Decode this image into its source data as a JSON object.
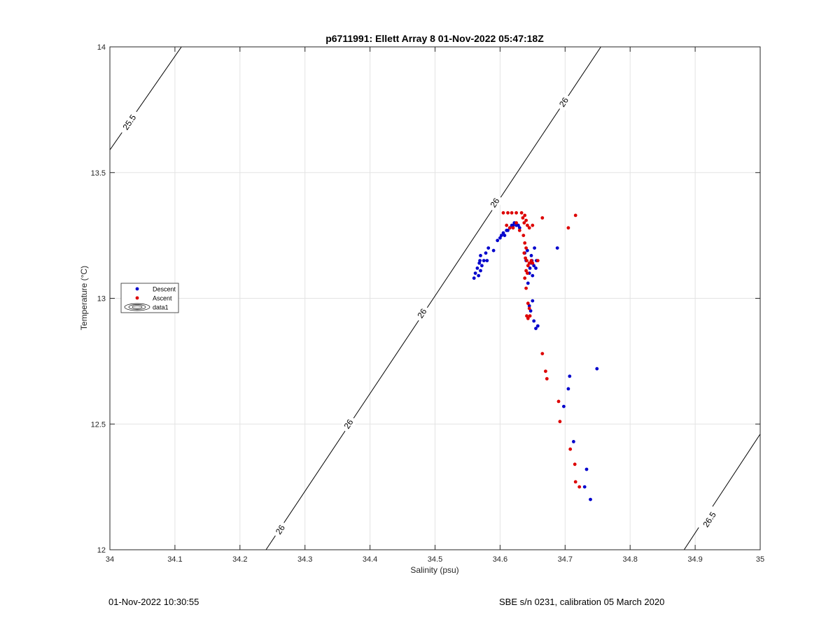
{
  "chart_data": {
    "type": "scatter",
    "title": "p6711991: Ellett Array 8 01-Nov-2022 05:47:18Z",
    "xlabel": "Salinity (psu)",
    "ylabel": "Temperature (°C)",
    "xlim": [
      34,
      35
    ],
    "ylim": [
      12,
      14
    ],
    "xticks": [
      34,
      34.1,
      34.2,
      34.3,
      34.4,
      34.5,
      34.6,
      34.7,
      34.8,
      34.9,
      35
    ],
    "xtick_labels": [
      "34",
      "34.1",
      "34.2",
      "34.3",
      "34.4",
      "34.5",
      "34.6",
      "34.7",
      "34.8",
      "34.9",
      "35"
    ],
    "yticks": [
      12,
      12.5,
      13,
      13.5,
      14
    ],
    "ytick_labels": [
      "12",
      "12.5",
      "13",
      "13.5",
      "14"
    ],
    "grid": true,
    "legend_position": "left",
    "series": [
      {
        "name": "Descent",
        "color": "#0000cc",
        "points": [
          [
            34.56,
            13.08
          ],
          [
            34.562,
            13.1
          ],
          [
            34.565,
            13.12
          ],
          [
            34.567,
            13.09
          ],
          [
            34.568,
            13.14
          ],
          [
            34.569,
            13.15
          ],
          [
            34.57,
            13.11
          ],
          [
            34.57,
            13.17
          ],
          [
            34.572,
            13.13
          ],
          [
            34.575,
            13.15
          ],
          [
            34.578,
            13.18
          ],
          [
            34.58,
            13.15
          ],
          [
            34.582,
            13.2
          ],
          [
            34.59,
            13.19
          ],
          [
            34.596,
            13.23
          ],
          [
            34.6,
            13.24
          ],
          [
            34.602,
            13.25
          ],
          [
            34.605,
            13.26
          ],
          [
            34.607,
            13.25
          ],
          [
            34.61,
            13.27
          ],
          [
            34.612,
            13.27
          ],
          [
            34.615,
            13.28
          ],
          [
            34.618,
            13.29
          ],
          [
            34.62,
            13.29
          ],
          [
            34.622,
            13.3
          ],
          [
            34.625,
            13.29
          ],
          [
            34.628,
            13.29
          ],
          [
            34.63,
            13.28
          ],
          [
            34.638,
            13.18
          ],
          [
            34.64,
            13.15
          ],
          [
            34.642,
            13.19
          ],
          [
            34.643,
            13.06
          ],
          [
            34.645,
            13.1
          ],
          [
            34.646,
            13.12
          ],
          [
            34.648,
            13.14
          ],
          [
            34.648,
            13.17
          ],
          [
            34.649,
            13.15
          ],
          [
            34.65,
            13.09
          ],
          [
            34.652,
            13.13
          ],
          [
            34.653,
            13.2
          ],
          [
            34.655,
            13.12
          ],
          [
            34.656,
            13.15
          ],
          [
            34.645,
            12.97
          ],
          [
            34.647,
            12.95
          ],
          [
            34.65,
            12.99
          ],
          [
            34.652,
            12.91
          ],
          [
            34.655,
            12.88
          ],
          [
            34.658,
            12.89
          ],
          [
            34.688,
            13.2
          ],
          [
            34.705,
            12.64
          ],
          [
            34.707,
            12.69
          ],
          [
            34.698,
            12.57
          ],
          [
            34.713,
            12.43
          ],
          [
            34.733,
            12.32
          ],
          [
            34.73,
            12.25
          ],
          [
            34.739,
            12.2
          ],
          [
            34.749,
            12.72
          ]
        ]
      },
      {
        "name": "Ascent",
        "color": "#dd0000",
        "points": [
          [
            34.605,
            13.34
          ],
          [
            34.612,
            13.34
          ],
          [
            34.618,
            13.34
          ],
          [
            34.625,
            13.34
          ],
          [
            34.633,
            13.34
          ],
          [
            34.638,
            13.33
          ],
          [
            34.61,
            13.29
          ],
          [
            34.615,
            13.28
          ],
          [
            34.62,
            13.28
          ],
          [
            34.625,
            13.3
          ],
          [
            34.63,
            13.27
          ],
          [
            34.635,
            13.32
          ],
          [
            34.637,
            13.3
          ],
          [
            34.64,
            13.31
          ],
          [
            34.642,
            13.29
          ],
          [
            34.645,
            13.28
          ],
          [
            34.65,
            13.29
          ],
          [
            34.636,
            13.25
          ],
          [
            34.638,
            13.22
          ],
          [
            34.64,
            13.2
          ],
          [
            34.637,
            13.18
          ],
          [
            34.639,
            13.16
          ],
          [
            34.641,
            13.15
          ],
          [
            34.645,
            13.14
          ],
          [
            34.648,
            13.15
          ],
          [
            34.65,
            13.14
          ],
          [
            34.658,
            13.15
          ],
          [
            34.64,
            13.11
          ],
          [
            34.642,
            13.1
          ],
          [
            34.643,
            13.13
          ],
          [
            34.638,
            13.08
          ],
          [
            34.64,
            13.04
          ],
          [
            34.643,
            12.98
          ],
          [
            34.645,
            12.96
          ],
          [
            34.641,
            12.93
          ],
          [
            34.643,
            12.92
          ],
          [
            34.646,
            12.93
          ],
          [
            34.665,
            13.32
          ],
          [
            34.705,
            13.28
          ],
          [
            34.716,
            13.33
          ],
          [
            34.665,
            12.78
          ],
          [
            34.67,
            12.71
          ],
          [
            34.672,
            12.68
          ],
          [
            34.69,
            12.59
          ],
          [
            34.692,
            12.51
          ],
          [
            34.708,
            12.4
          ],
          [
            34.715,
            12.34
          ],
          [
            34.716,
            12.27
          ],
          [
            34.722,
            12.25
          ]
        ]
      }
    ],
    "contours": [
      {
        "name": "25.5",
        "points": [
          [
            34.0,
            13.59
          ],
          [
            34.11,
            14.0
          ]
        ],
        "labels": [
          {
            "text": "25.5",
            "at": [
              34.03,
              13.7
            ]
          }
        ]
      },
      {
        "name": "26",
        "points": [
          [
            34.24,
            12.0
          ],
          [
            34.755,
            14.0
          ]
        ],
        "labels": [
          {
            "text": "26",
            "at": [
              34.262,
              12.08
            ]
          },
          {
            "text": "26",
            "at": [
              34.367,
              12.5
            ]
          },
          {
            "text": "26",
            "at": [
              34.48,
              12.94
            ]
          },
          {
            "text": "26",
            "at": [
              34.592,
              13.38
            ]
          },
          {
            "text": "26",
            "at": [
              34.698,
              13.78
            ]
          }
        ]
      },
      {
        "name": "26.5",
        "points": [
          [
            34.883,
            12.0
          ],
          [
            35.0,
            12.46
          ]
        ],
        "labels": [
          {
            "text": "26.5",
            "at": [
              34.922,
              12.12
            ]
          }
        ]
      }
    ],
    "legend": [
      {
        "label": "Descent",
        "kind": "marker",
        "color": "#0000cc"
      },
      {
        "label": "Ascent",
        "kind": "marker",
        "color": "#dd0000"
      },
      {
        "label": "data1",
        "kind": "contour",
        "color": "#000000"
      }
    ]
  },
  "footer": {
    "left": "01-Nov-2022 10:30:55",
    "right": "SBE s/n 0231, calibration 05 March 2020"
  }
}
